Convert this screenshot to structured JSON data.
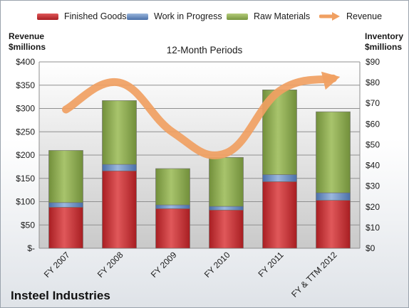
{
  "legend": {
    "finished": "Finished Goods",
    "wip": "Work in Progress",
    "raw": "Raw Materials",
    "revenue": "Revenue"
  },
  "left_axis_title": [
    "Revenue",
    "$millions"
  ],
  "right_axis_title": [
    "Inventory",
    "$millions"
  ],
  "company": "Insteel Industries",
  "colors": {
    "finished": "#c0282b",
    "wip": "#5b7fb5",
    "raw": "#8aa64a",
    "revenue": "#f0a062"
  },
  "chart_data": {
    "type": "bar",
    "stacked": true,
    "title": "12-Month Periods",
    "categories": [
      "FY 2007",
      "FY 2008",
      "FY 2009",
      "FY 2010",
      "FY 2011",
      "FY & TTM 2012"
    ],
    "series": [
      {
        "name": "Finished Goods",
        "axis": "left",
        "values": [
          88,
          166,
          85,
          82,
          143,
          103
        ]
      },
      {
        "name": "Work in Progress",
        "axis": "left",
        "values": [
          10,
          14,
          8,
          8,
          15,
          16
        ]
      },
      {
        "name": "Raw Materials",
        "axis": "left",
        "values": [
          112,
          137,
          78,
          105,
          182,
          174
        ]
      },
      {
        "name": "Revenue",
        "type": "line",
        "axis": "right",
        "values": [
          67,
          80,
          56,
          46,
          76,
          82
        ]
      }
    ],
    "y_left": {
      "ylim": [
        0,
        400
      ],
      "ticks": [
        "$-",
        "$50",
        "$100",
        "$150",
        "$200",
        "$250",
        "$300",
        "$350",
        "$400"
      ]
    },
    "y_right": {
      "ylim": [
        0,
        90
      ],
      "ticks": [
        "$0",
        "$10",
        "$20",
        "$30",
        "$40",
        "$50",
        "$60",
        "$70",
        "$80",
        "$90"
      ]
    },
    "legend_position": "top",
    "grid": true
  }
}
